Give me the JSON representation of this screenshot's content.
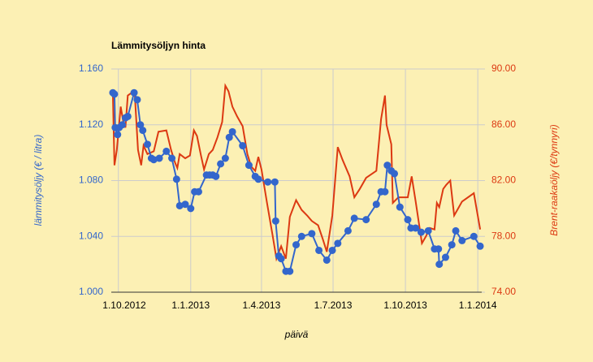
{
  "chart_data": {
    "type": "line",
    "title": "Lämmitysöljyn hinta",
    "xlabel": "päivä",
    "ylabel": "lämmitysöljy (€ / litra)",
    "y2label": "Brent-raakaöljy (€/tynnyri)",
    "xlim": [
      "2012-09-22",
      "2014-01-06"
    ],
    "xticks": [
      {
        "value": "2012-10-01",
        "label": "1.10.2012"
      },
      {
        "value": "2013-01-01",
        "label": "1.1.2013"
      },
      {
        "value": "2013-04-01",
        "label": "1.4.2013"
      },
      {
        "value": "2013-07-01",
        "label": "1.7.2013"
      },
      {
        "value": "2013-10-01",
        "label": "1.10.2013"
      },
      {
        "value": "2014-01-01",
        "label": "1.1.2014"
      }
    ],
    "ylim": [
      1.0,
      1.16
    ],
    "yticks": [
      {
        "value": 1.0,
        "label": "1.000"
      },
      {
        "value": 1.04,
        "label": "1.040"
      },
      {
        "value": 1.08,
        "label": "1.080"
      },
      {
        "value": 1.12,
        "label": "1.120"
      },
      {
        "value": 1.16,
        "label": "1.160"
      }
    ],
    "y2lim": [
      74,
      90
    ],
    "y2ticks": [
      {
        "value": 74,
        "label": "74.00"
      },
      {
        "value": 78,
        "label": "78.00"
      },
      {
        "value": 82,
        "label": "82.00"
      },
      {
        "value": 86,
        "label": "86.00"
      },
      {
        "value": 90,
        "label": "90.00"
      }
    ],
    "grid": true,
    "series": [
      {
        "color": "#dc3912",
        "axis": "y2",
        "markers": false,
        "x": [
          "2012-09-24",
          "2012-09-26",
          "2012-09-29",
          "2012-10-04",
          "2012-10-07",
          "2012-10-10",
          "2012-10-13",
          "2012-10-18",
          "2012-10-22",
          "2012-10-26",
          "2012-10-30",
          "2012-11-02",
          "2012-11-07",
          "2012-11-11",
          "2012-11-15",
          "2012-11-21",
          "2012-12-01",
          "2012-12-07",
          "2012-12-12",
          "2012-12-15",
          "2012-12-18",
          "2012-12-25",
          "2012-12-31",
          "2013-01-05",
          "2013-01-09",
          "2013-01-14",
          "2013-01-18",
          "2013-01-24",
          "2013-01-29",
          "2013-02-04",
          "2013-02-10",
          "2013-02-14",
          "2013-02-18",
          "2013-02-23",
          "2013-03-01",
          "2013-03-08",
          "2013-03-14",
          "2013-03-19",
          "2013-03-24",
          "2013-03-28",
          "2013-04-01",
          "2013-04-08",
          "2013-04-15",
          "2013-04-20",
          "2013-04-26",
          "2013-05-02",
          "2013-05-07",
          "2013-05-15",
          "2013-05-22",
          "2013-05-29",
          "2013-06-04",
          "2013-06-12",
          "2013-06-18",
          "2013-06-23",
          "2013-06-30",
          "2013-07-07",
          "2013-07-13",
          "2013-07-22",
          "2013-07-28",
          "2013-08-04",
          "2013-08-12",
          "2013-08-25",
          "2013-08-31",
          "2013-09-05",
          "2013-09-07",
          "2013-09-13",
          "2013-09-15",
          "2013-09-22",
          "2013-09-28",
          "2013-10-04",
          "2013-10-09",
          "2013-10-14",
          "2013-10-22",
          "2013-10-27",
          "2013-11-01",
          "2013-11-07",
          "2013-11-10",
          "2013-11-13",
          "2013-11-18",
          "2013-11-22",
          "2013-11-27",
          "2013-12-02",
          "2013-12-06",
          "2013-12-12",
          "2013-12-27",
          "2014-01-04"
        ],
        "values": [
          88.3,
          83.1,
          84.2,
          87.3,
          86.3,
          85.8,
          88.1,
          88.3,
          88.1,
          84.2,
          83.1,
          84.5,
          83.9,
          84.0,
          84.1,
          85.5,
          85.6,
          84.2,
          83.3,
          82.9,
          83.9,
          83.6,
          83.8,
          85.6,
          85.2,
          83.8,
          82.8,
          83.9,
          84.2,
          85.1,
          86.2,
          88.8,
          88.4,
          87.3,
          86.6,
          85.9,
          83.9,
          83.0,
          82.7,
          83.7,
          82.8,
          80.4,
          78.1,
          76.4,
          77.3,
          76.4,
          79.4,
          80.6,
          79.9,
          79.5,
          79.1,
          78.8,
          77.8,
          76.9,
          79.5,
          84.4,
          83.5,
          82.3,
          80.8,
          81.4,
          82.2,
          82.7,
          86.4,
          88.1,
          86.0,
          84.6,
          80.4,
          80.8,
          80.8,
          80.8,
          82.3,
          80.5,
          77.5,
          78.0,
          78.6,
          78.5,
          80.4,
          80.1,
          81.4,
          81.7,
          82.0,
          79.5,
          79.9,
          80.5,
          81.1,
          78.5
        ]
      },
      {
        "color": "#3366cc",
        "axis": "y",
        "markers": true,
        "x": [
          "2012-09-24",
          "2012-09-26",
          "2012-09-27",
          "2012-09-30",
          "2012-10-02",
          "2012-10-06",
          "2012-10-10",
          "2012-10-13",
          "2012-10-21",
          "2012-10-25",
          "2012-10-29",
          "2012-11-01",
          "2012-11-07",
          "2012-11-12",
          "2012-11-15",
          "2012-11-22",
          "2012-12-01",
          "2012-12-08",
          "2012-12-14",
          "2012-12-18",
          "2012-12-25",
          "2013-01-01",
          "2013-01-06",
          "2013-01-11",
          "2013-01-21",
          "2013-01-25",
          "2013-01-29",
          "2013-02-02",
          "2013-02-08",
          "2013-02-14",
          "2013-02-19",
          "2013-02-23",
          "2013-03-08",
          "2013-03-16",
          "2013-03-24",
          "2013-03-28",
          "2013-04-09",
          "2013-04-18",
          "2013-04-19",
          "2013-04-23",
          "2013-04-26",
          "2013-05-02",
          "2013-05-07",
          "2013-05-15",
          "2013-05-22",
          "2013-06-04",
          "2013-06-13",
          "2013-06-23",
          "2013-06-30",
          "2013-07-07",
          "2013-07-20",
          "2013-07-28",
          "2013-08-12",
          "2013-08-25",
          "2013-08-31",
          "2013-09-05",
          "2013-09-08",
          "2013-09-13",
          "2013-09-17",
          "2013-09-24",
          "2013-10-04",
          "2013-10-08",
          "2013-10-14",
          "2013-10-21",
          "2013-10-30",
          "2013-11-07",
          "2013-11-12",
          "2013-11-13",
          "2013-11-21",
          "2013-11-29",
          "2013-12-04",
          "2013-12-12",
          "2013-12-27",
          "2014-01-04"
        ],
        "values": [
          1.143,
          1.142,
          1.118,
          1.113,
          1.118,
          1.12,
          1.125,
          1.126,
          1.143,
          1.138,
          1.12,
          1.116,
          1.106,
          1.096,
          1.095,
          1.096,
          1.101,
          1.096,
          1.081,
          1.062,
          1.063,
          1.06,
          1.072,
          1.072,
          1.084,
          1.084,
          1.084,
          1.083,
          1.092,
          1.096,
          1.111,
          1.115,
          1.105,
          1.091,
          1.083,
          1.081,
          1.079,
          1.079,
          1.051,
          1.026,
          1.024,
          1.015,
          1.015,
          1.034,
          1.04,
          1.042,
          1.03,
          1.023,
          1.03,
          1.035,
          1.044,
          1.053,
          1.052,
          1.063,
          1.072,
          1.072,
          1.091,
          1.087,
          1.085,
          1.061,
          1.052,
          1.046,
          1.046,
          1.043,
          1.044,
          1.031,
          1.031,
          1.02,
          1.025,
          1.034,
          1.044,
          1.037,
          1.04,
          1.033
        ]
      }
    ]
  }
}
